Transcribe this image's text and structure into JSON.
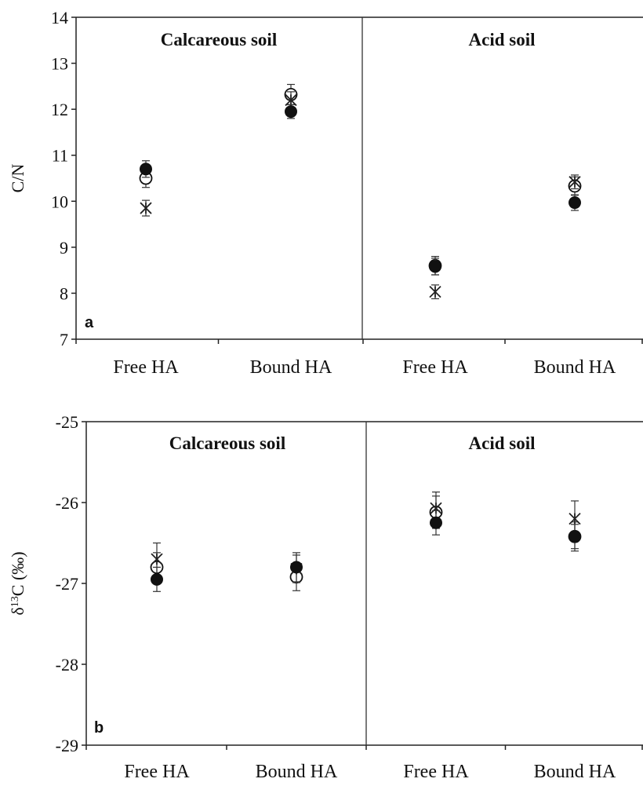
{
  "chart_data": [
    {
      "type": "scatter",
      "panel_label": "a",
      "ylabel": "C/N",
      "ylim": [
        7,
        14
      ],
      "yticks": [
        "7",
        "8",
        "9",
        "10",
        "11",
        "12",
        "13",
        "14"
      ],
      "categories": [
        "Free HA",
        "Bound HA",
        "Free HA",
        "Bound HA"
      ],
      "groups": [
        "Calcareous soil",
        "Acid soil"
      ],
      "series": [
        {
          "marker": "filled-circle",
          "values": [
            10.7,
            11.95,
            8.58,
            9.97
          ],
          "errors": [
            0.18,
            0.15,
            0.18,
            0.17
          ]
        },
        {
          "marker": "open-circle",
          "values": [
            10.5,
            12.32,
            8.6,
            10.33
          ],
          "errors": [
            0.2,
            0.22,
            0.2,
            0.2
          ]
        },
        {
          "marker": "asterisk",
          "values": [
            9.85,
            12.2,
            8.03,
            10.42
          ],
          "errors": [
            0.17,
            0.18,
            0.15,
            0.15
          ]
        }
      ]
    },
    {
      "type": "scatter",
      "panel_label": "b",
      "ylabel_prefix": "δ",
      "ylabel_sup": "13",
      "ylabel_suffix": "C (‰)",
      "ylim": [
        -29,
        -25
      ],
      "yticks": [
        "-29",
        "-28",
        "-27",
        "-26",
        "-25"
      ],
      "categories": [
        "Free HA",
        "Bound HA",
        "Free HA",
        "Bound HA"
      ],
      "groups": [
        "Calcareous soil",
        "Acid soil"
      ],
      "series": [
        {
          "marker": "filled-circle",
          "values": [
            -26.95,
            -26.8,
            -26.25,
            -26.42
          ],
          "errors": [
            0.15,
            0.18,
            0.15,
            0.15
          ]
        },
        {
          "marker": "open-circle",
          "values": [
            -26.8,
            -26.92,
            -26.12,
            -26.42
          ],
          "errors": [
            0.18,
            0.17,
            0.2,
            0.18
          ]
        },
        {
          "marker": "asterisk",
          "values": [
            -26.7,
            -26.82,
            -26.07,
            -26.2
          ],
          "errors": [
            0.2,
            0.17,
            0.2,
            0.22
          ]
        }
      ]
    }
  ]
}
